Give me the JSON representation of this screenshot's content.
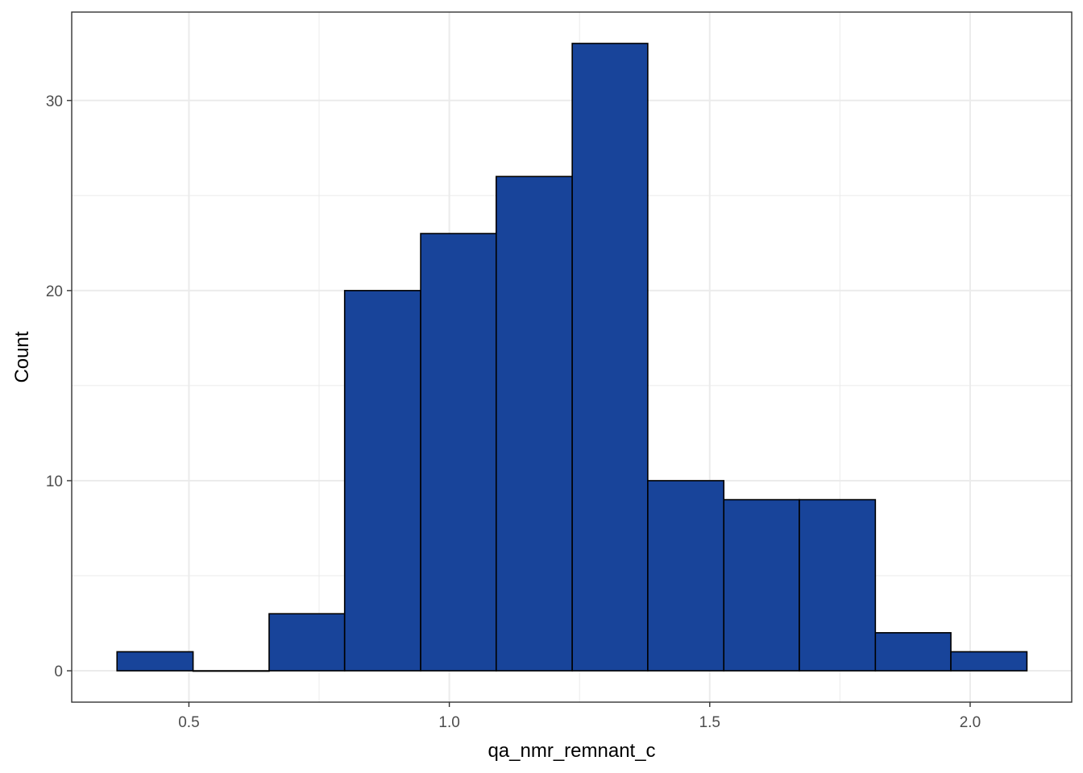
{
  "chart_data": {
    "type": "bar",
    "title": "",
    "xlabel": "qa_nmr_remnant_c",
    "ylabel": "Count",
    "bin_edges": [
      0.362,
      0.508,
      0.654,
      0.799,
      0.945,
      1.09,
      1.236,
      1.381,
      1.527,
      1.672,
      1.818,
      1.963,
      2.109
    ],
    "counts": [
      1,
      0,
      3,
      20,
      23,
      26,
      33,
      10,
      9,
      9,
      2,
      1
    ],
    "xlim": [
      0.275,
      2.195
    ],
    "ylim": [
      -1.65,
      34.65
    ],
    "x_ticks": [
      "0.5",
      "1.0",
      "1.5",
      "2.0"
    ],
    "y_ticks": [
      "0",
      "10",
      "20",
      "30"
    ],
    "grid": true,
    "legend": "none",
    "colors": {
      "bar_fill": "#18449A",
      "bar_outline": "#000000",
      "grid": "#EBEBEB",
      "panel_border": "#333333",
      "tick_text": "#4D4D4D",
      "title_text": "#000000"
    }
  }
}
